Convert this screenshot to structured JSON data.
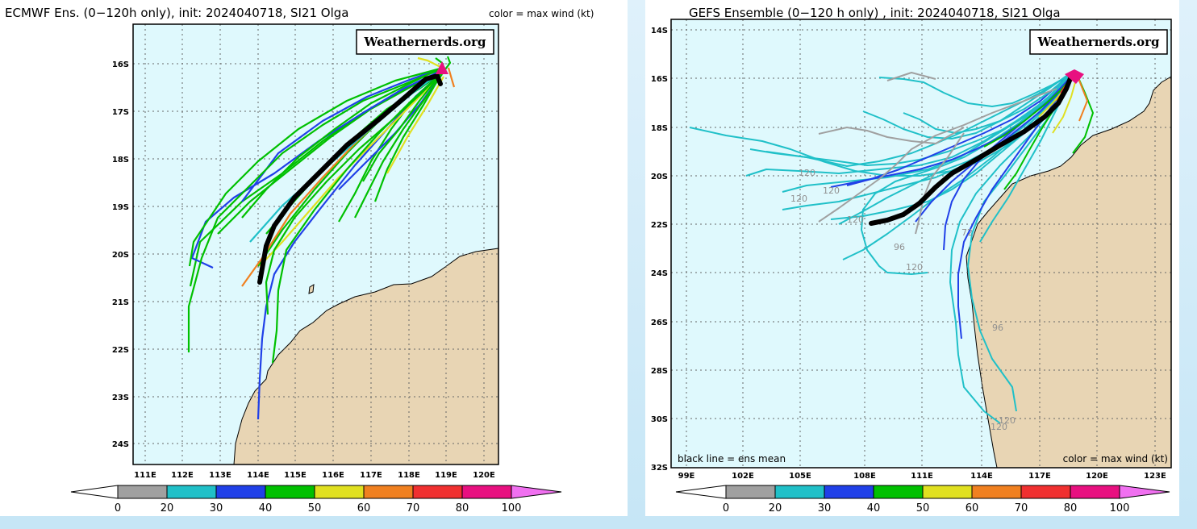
{
  "left_panel": {
    "title": "ECMWF Ens. (0−120h only), init: 2024040718, SI21 Olga",
    "color_note": "color = max wind (kt)",
    "watermark": "Weathernerds.org",
    "lon_labels": [
      "111E",
      "112E",
      "113E",
      "114E",
      "115E",
      "116E",
      "117E",
      "118E",
      "119E",
      "120E"
    ],
    "lat_labels": [
      "16S",
      "17S",
      "18S",
      "19S",
      "20S",
      "21S",
      "22S",
      "23S",
      "24S"
    ]
  },
  "right_panel": {
    "title": "GEFS Ensemble (0−120 h only) , init: 2024040718, SI21 Olga",
    "color_note": "color = max wind (kt)",
    "mean_note": "black line = ens mean",
    "watermark": "Weathernerds.org",
    "lon_labels": [
      "99E",
      "102E",
      "105E",
      "108E",
      "111E",
      "114E",
      "117E",
      "120E",
      "123E"
    ],
    "lat_labels": [
      "14S",
      "16S",
      "18S",
      "20S",
      "22S",
      "24S",
      "26S",
      "28S",
      "30S",
      "32S"
    ],
    "hour_labels": [
      "120",
      "120",
      "120",
      "120",
      "96",
      "120",
      "120",
      "72",
      "96",
      "120"
    ]
  },
  "colorbar": {
    "labels": [
      "0",
      "20",
      "30",
      "40",
      "50",
      "60",
      "70",
      "80",
      "100"
    ],
    "colors": [
      "#ffffff",
      "#a0a0a0",
      "#20c0c8",
      "#2040e8",
      "#00c000",
      "#e0e020",
      "#f08020",
      "#f03030",
      "#e81080",
      "#f070f0"
    ]
  },
  "colors": {
    "ocean": "#dff9fd",
    "land": "#e8d5b4",
    "mean_track": "#000000"
  }
}
